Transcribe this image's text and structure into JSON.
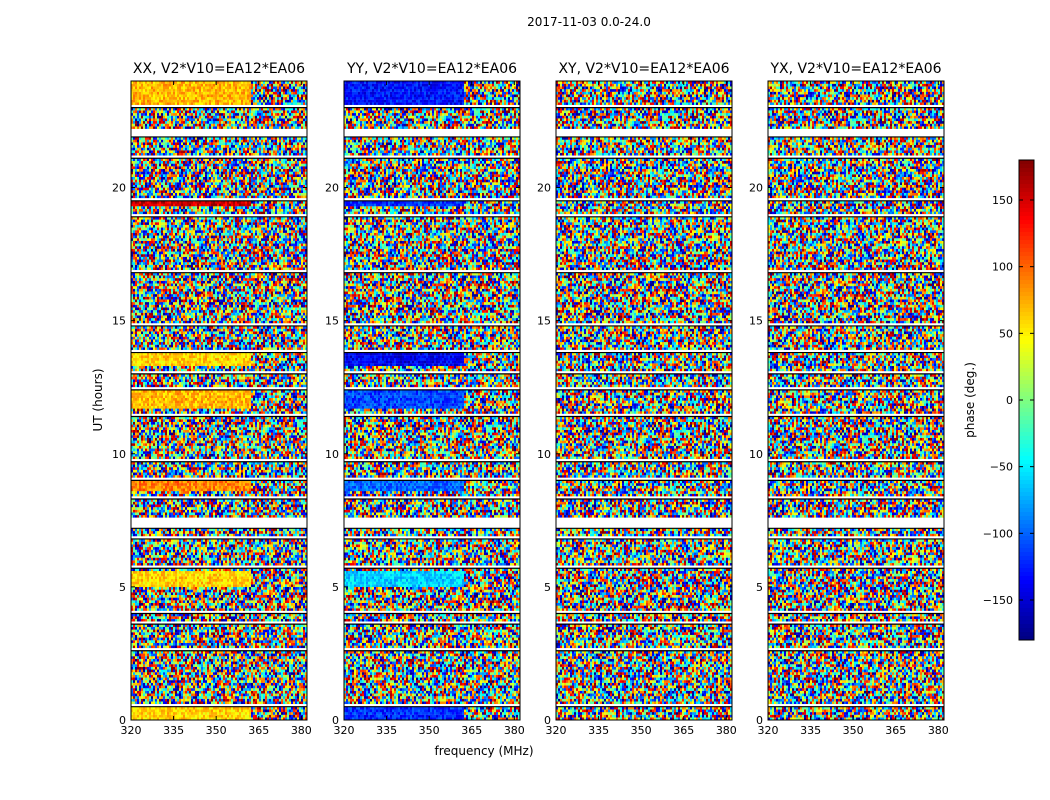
{
  "figure": {
    "suptitle": "2017-11-03 0.0-24.0",
    "xlabel": "frequency (MHz)",
    "ylabel": "UT (hours)"
  },
  "chart_data": {
    "type": "heatmap",
    "title": "2017-11-03 0.0-24.0",
    "xlabel": "frequency (MHz)",
    "ylabel": "UT (hours)",
    "xlim": [
      320,
      382
    ],
    "ylim": [
      0,
      24
    ],
    "xticks": [
      320,
      335,
      350,
      365,
      380
    ],
    "yticks": [
      0,
      5,
      10,
      15,
      20
    ],
    "panels": [
      {
        "title": "XX, V2*V10=EA12*EA06",
        "bias": [
          {
            "y0": 0.0,
            "y1": 0.5,
            "phase": 60
          },
          {
            "y0": 5.0,
            "y1": 5.6,
            "phase": 60
          },
          {
            "y0": 8.6,
            "y1": 9.0,
            "phase": 90
          },
          {
            "y0": 11.7,
            "y1": 12.4,
            "phase": 70
          },
          {
            "y0": 13.3,
            "y1": 13.8,
            "phase": 60
          },
          {
            "y0": 19.3,
            "y1": 19.5,
            "phase": 150
          },
          {
            "y0": 23.0,
            "y1": 24.0,
            "phase": 70
          }
        ]
      },
      {
        "title": "YY, V2*V10=EA12*EA06",
        "bias": [
          {
            "y0": 0.0,
            "y1": 0.5,
            "phase": -120
          },
          {
            "y0": 5.0,
            "y1": 5.6,
            "phase": -60
          },
          {
            "y0": 8.6,
            "y1": 9.0,
            "phase": -100
          },
          {
            "y0": 11.7,
            "y1": 12.4,
            "phase": -110
          },
          {
            "y0": 13.3,
            "y1": 13.8,
            "phase": -140
          },
          {
            "y0": 19.3,
            "y1": 19.5,
            "phase": -120
          },
          {
            "y0": 23.0,
            "y1": 24.0,
            "phase": -130
          }
        ]
      },
      {
        "title": "XY, V2*V10=EA12*EA06",
        "bias": []
      },
      {
        "title": "YX, V2*V10=EA12*EA06",
        "bias": []
      }
    ],
    "flagged_bands": [
      [
        0.5,
        0.6
      ],
      [
        2.6,
        2.7
      ],
      [
        3.6,
        3.7
      ],
      [
        4.0,
        4.1
      ],
      [
        5.7,
        5.8
      ],
      [
        6.8,
        6.9
      ],
      [
        7.2,
        7.6
      ],
      [
        8.3,
        8.4
      ],
      [
        9.0,
        9.1
      ],
      [
        9.7,
        9.8
      ],
      [
        11.4,
        11.5
      ],
      [
        12.4,
        12.5
      ],
      [
        13.0,
        13.1
      ],
      [
        13.8,
        13.9
      ],
      [
        14.8,
        14.9
      ],
      [
        16.8,
        16.9
      ],
      [
        18.9,
        19.0
      ],
      [
        19.5,
        19.6
      ],
      [
        21.1,
        21.2
      ],
      [
        21.9,
        22.2
      ],
      [
        23.0,
        23.1
      ]
    ],
    "colorbar": {
      "label": "phase (deg.)",
      "range": [
        -180,
        180
      ],
      "ticks": [
        -150,
        -100,
        -50,
        0,
        50,
        100,
        150
      ],
      "ticklabels": [
        "−150",
        "−100",
        "−50",
        "0",
        "50",
        "100",
        "150"
      ],
      "colormap": "jet"
    }
  }
}
